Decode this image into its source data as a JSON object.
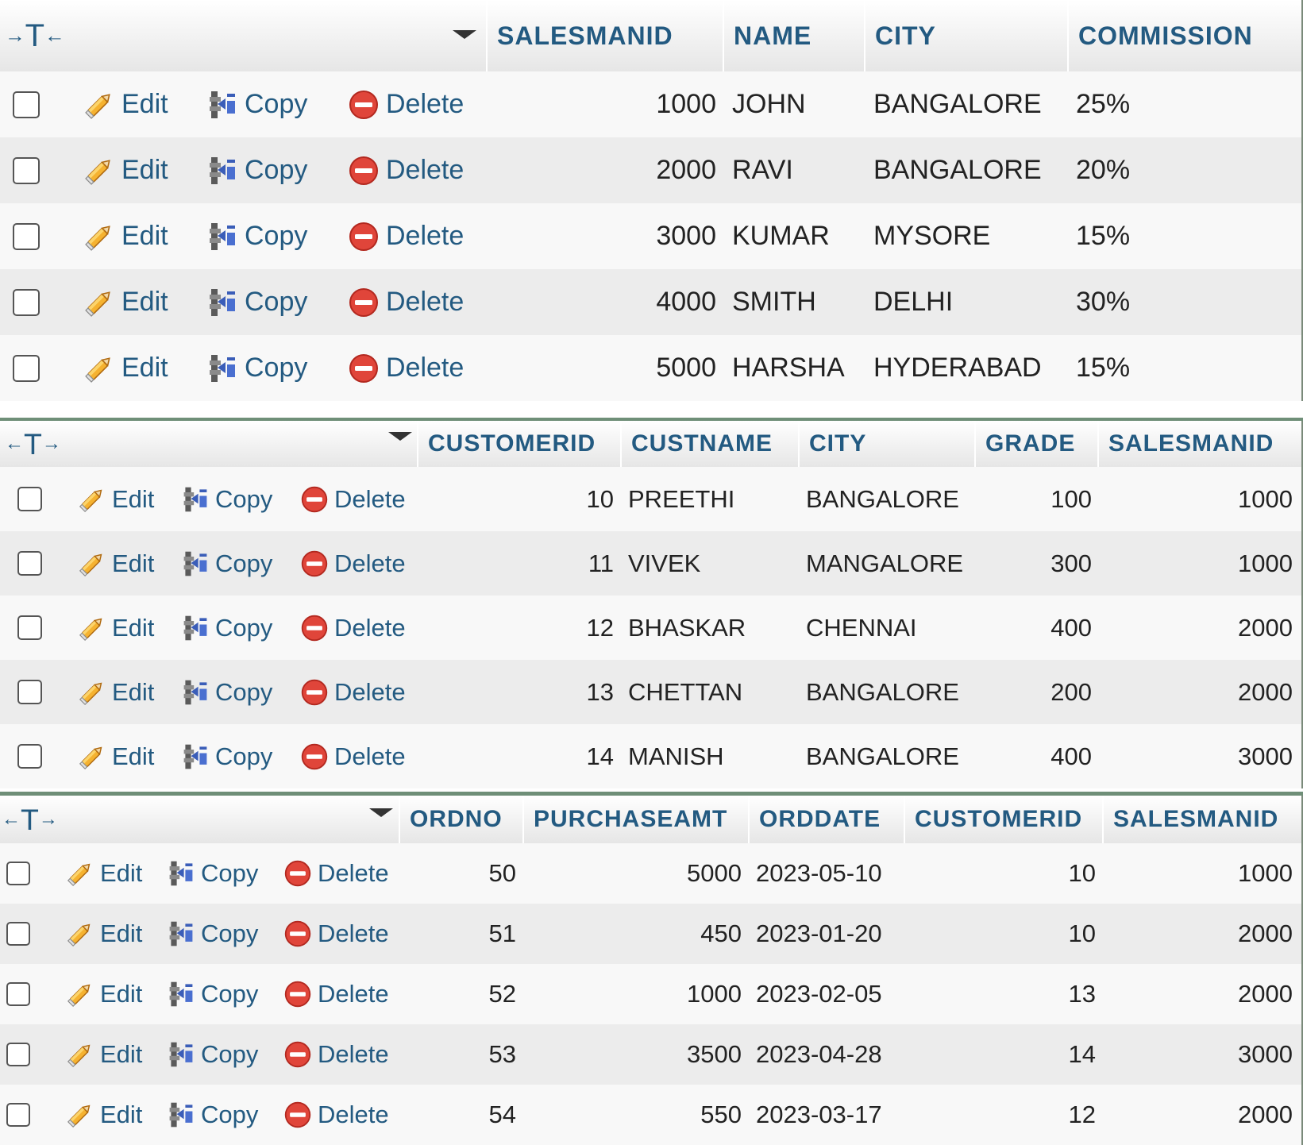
{
  "action_labels": {
    "edit": "Edit",
    "copy": "Copy",
    "delete": "Delete"
  },
  "icons": {
    "edit": "pencil-icon",
    "copy": "copy-icon",
    "delete": "delete-icon",
    "sort": "sort-triangle-icon",
    "column_toggle": "column-toggle-icon"
  },
  "colors": {
    "header_text": "#235a81",
    "row_odd": "#f8f8f8",
    "row_even": "#ececec",
    "delete_icon": "#e0453a",
    "edit_icon": "#f0a020"
  },
  "tables": [
    {
      "columns": [
        "SALESMANID",
        "NAME",
        "CITY",
        "COMMISSION"
      ],
      "rows": [
        [
          "1000",
          "JOHN",
          "BANGALORE",
          "25%"
        ],
        [
          "2000",
          "RAVI",
          "BANGALORE",
          "20%"
        ],
        [
          "3000",
          "KUMAR",
          "MYSORE",
          "15%"
        ],
        [
          "4000",
          "SMITH",
          "DELHI",
          "30%"
        ],
        [
          "5000",
          "HARSHA",
          "HYDERABAD",
          "15%"
        ]
      ]
    },
    {
      "columns": [
        "CUSTOMERID",
        "CUSTNAME",
        "CITY",
        "GRADE",
        "SALESMANID"
      ],
      "rows": [
        [
          "10",
          "PREETHI",
          "BANGALORE",
          "100",
          "1000"
        ],
        [
          "11",
          "VIVEK",
          "MANGALORE",
          "300",
          "1000"
        ],
        [
          "12",
          "BHASKAR",
          "CHENNAI",
          "400",
          "2000"
        ],
        [
          "13",
          "CHETTAN",
          "BANGALORE",
          "200",
          "2000"
        ],
        [
          "14",
          "MANISH",
          "BANGALORE",
          "400",
          "3000"
        ]
      ]
    },
    {
      "columns": [
        "ORDNO",
        "PURCHASEAMT",
        "ORDDATE",
        "CUSTOMERID",
        "SALESMANID"
      ],
      "rows": [
        [
          "50",
          "5000",
          "2023-05-10",
          "10",
          "1000"
        ],
        [
          "51",
          "450",
          "2023-01-20",
          "10",
          "2000"
        ],
        [
          "52",
          "1000",
          "2023-02-05",
          "13",
          "2000"
        ],
        [
          "53",
          "3500",
          "2023-04-28",
          "14",
          "3000"
        ],
        [
          "54",
          "550",
          "2023-03-17",
          "12",
          "2000"
        ]
      ]
    }
  ]
}
